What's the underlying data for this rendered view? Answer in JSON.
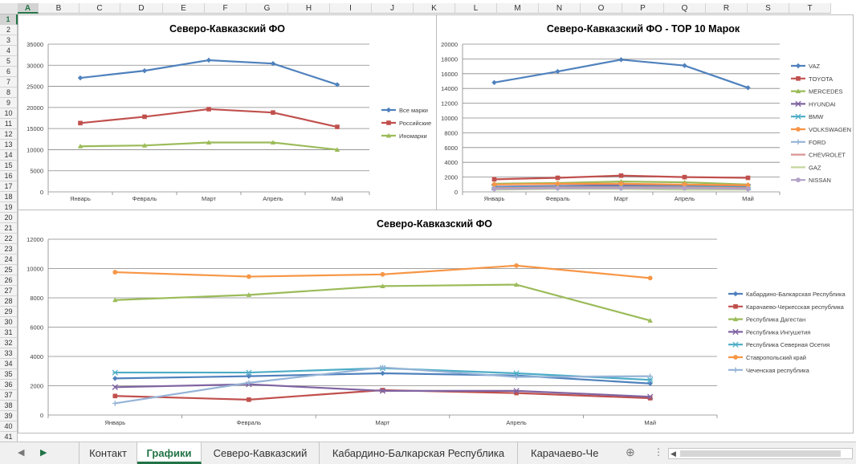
{
  "columns": [
    "A",
    "B",
    "C",
    "D",
    "E",
    "F",
    "G",
    "H",
    "I",
    "J",
    "K",
    "L",
    "M",
    "N",
    "O",
    "P",
    "Q",
    "R",
    "S",
    "T"
  ],
  "selected_column": "A",
  "rows": [
    "1",
    "2",
    "3",
    "4",
    "5",
    "6",
    "7",
    "8",
    "9",
    "10",
    "11",
    "12",
    "13",
    "14",
    "15",
    "16",
    "17",
    "18",
    "19",
    "20",
    "21",
    "22",
    "23",
    "24",
    "25",
    "26",
    "27",
    "28",
    "29",
    "30",
    "31",
    "32",
    "33",
    "34",
    "35",
    "36",
    "37",
    "38",
    "39",
    "40",
    "41"
  ],
  "selected_row": "1",
  "sheet_tabs": [
    "Контакт",
    "Графики",
    "Северо-Кавказский",
    "Кабардино-Балкарская Республика",
    "Карачаево-Че"
  ],
  "active_tab": "Графики",
  "colors": {
    "excel_green": "#217346",
    "grid": "#868686",
    "axis": "#868686"
  },
  "icons": {
    "prev_sheet": "chevron-left-icon",
    "next_sheet": "chevron-right-icon",
    "add_sheet": "plus-circle-icon",
    "more": "vertical-ellipsis-icon"
  },
  "chart_data": [
    {
      "type": "line",
      "title": "Северо-Кавказский ФО",
      "categories": [
        "Январь",
        "Февраль",
        "Март",
        "Апрель",
        "Май"
      ],
      "ylim": [
        0,
        35000
      ],
      "yticks": [
        0,
        5000,
        10000,
        15000,
        20000,
        25000,
        30000,
        35000
      ],
      "grid": true,
      "legend": "right",
      "series": [
        {
          "name": "Все марки",
          "color": "#4f81bd",
          "marker": "diamond",
          "values": [
            27000,
            28700,
            31200,
            30400,
            25400
          ]
        },
        {
          "name": "Российские",
          "color": "#c0504d",
          "marker": "square",
          "values": [
            16300,
            17800,
            19600,
            18800,
            15400
          ]
        },
        {
          "name": "Иномарки",
          "color": "#9bbb59",
          "marker": "triangle",
          "values": [
            10800,
            11000,
            11700,
            11700,
            10000
          ]
        }
      ]
    },
    {
      "type": "line",
      "title": "Северо-Кавказский ФО - TOP 10 Марок",
      "categories": [
        "Январь",
        "Февраль",
        "Март",
        "Апрель",
        "Май"
      ],
      "ylim": [
        0,
        20000
      ],
      "yticks": [
        0,
        2000,
        4000,
        6000,
        8000,
        10000,
        12000,
        14000,
        16000,
        18000,
        20000
      ],
      "grid": true,
      "legend": "right",
      "series": [
        {
          "name": "VAZ",
          "color": "#4f81bd",
          "marker": "diamond",
          "values": [
            14800,
            16300,
            17900,
            17100,
            14100
          ]
        },
        {
          "name": "TOYOTA",
          "color": "#c0504d",
          "marker": "square",
          "values": [
            1700,
            1900,
            2200,
            2000,
            1900
          ]
        },
        {
          "name": "MERCEDES",
          "color": "#9bbb59",
          "marker": "triangle",
          "values": [
            1100,
            1200,
            1400,
            1300,
            1000
          ]
        },
        {
          "name": "HYUNDAI",
          "color": "#8064a2",
          "marker": "x",
          "values": [
            700,
            800,
            900,
            800,
            700
          ]
        },
        {
          "name": "BMW",
          "color": "#4bacc6",
          "marker": "star",
          "values": [
            600,
            700,
            700,
            700,
            600
          ]
        },
        {
          "name": "VOLKSWAGEN",
          "color": "#f79646",
          "marker": "circle",
          "values": [
            1000,
            1100,
            1100,
            1000,
            900
          ]
        },
        {
          "name": "FORD",
          "color": "#95b3d7",
          "marker": "plus",
          "values": [
            400,
            500,
            500,
            500,
            400
          ]
        },
        {
          "name": "CHEVROLET",
          "color": "#d99694",
          "marker": "none",
          "values": [
            500,
            600,
            600,
            600,
            500
          ]
        },
        {
          "name": "GAZ",
          "color": "#c3d69b",
          "marker": "none",
          "values": [
            300,
            400,
            400,
            300,
            300
          ]
        },
        {
          "name": "NISSAN",
          "color": "#b2a1c7",
          "marker": "circle",
          "values": [
            400,
            500,
            500,
            500,
            400
          ]
        }
      ]
    },
    {
      "type": "line",
      "title": "Северо-Кавказский ФО",
      "categories": [
        "Январь",
        "Февраль",
        "Март",
        "Апрель",
        "Май"
      ],
      "ylim": [
        0,
        12000
      ],
      "yticks": [
        0,
        2000,
        4000,
        6000,
        8000,
        10000,
        12000
      ],
      "grid": true,
      "legend": "right",
      "series": [
        {
          "name": "Кабардино-Балкарская Республика",
          "color": "#4f81bd",
          "marker": "diamond",
          "values": [
            2500,
            2650,
            2850,
            2700,
            2150
          ]
        },
        {
          "name": "Карачаево-Черкесская республика",
          "color": "#c0504d",
          "marker": "square",
          "values": [
            1300,
            1050,
            1700,
            1500,
            1150
          ]
        },
        {
          "name": "Республика Дагестан",
          "color": "#9bbb59",
          "marker": "triangle",
          "values": [
            7850,
            8200,
            8800,
            8900,
            6450
          ]
        },
        {
          "name": "Республика Ингушетия",
          "color": "#8064a2",
          "marker": "x",
          "values": [
            1900,
            2100,
            1650,
            1650,
            1250
          ]
        },
        {
          "name": "Республика Северная Осетия",
          "color": "#4bacc6",
          "marker": "star",
          "values": [
            2900,
            2900,
            3200,
            2850,
            2400
          ]
        },
        {
          "name": "Ставропольский край",
          "color": "#f79646",
          "marker": "circle",
          "values": [
            9750,
            9450,
            9600,
            10200,
            9350
          ]
        },
        {
          "name": "Чеченская республика",
          "color": "#95b3d7",
          "marker": "plus",
          "values": [
            800,
            2200,
            3250,
            2600,
            2650
          ]
        }
      ]
    }
  ]
}
